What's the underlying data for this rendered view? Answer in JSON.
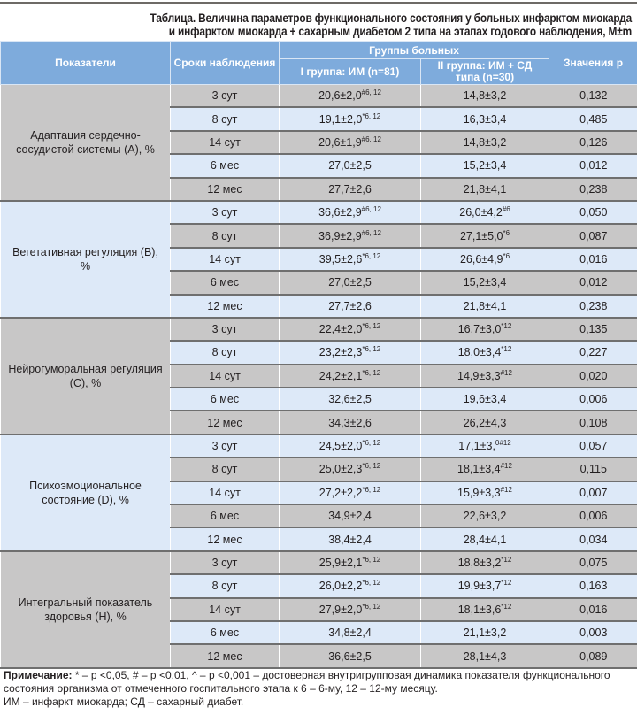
{
  "title": [
    "Таблица. Величина параметров функционального состояния у больных инфарктом миокарда",
    "и инфарктом миокарда + сахарным диабетом 2 типа на этапах годового наблюдения, M±m"
  ],
  "header": {
    "indicator": "Показатели",
    "period": "Сроки наблюдения",
    "groups": "Группы больных",
    "group1": "I группа: ИМ (n=81)",
    "group2": "II группа: ИМ + СД типа (n=30)",
    "p": "Значения р"
  },
  "groups": [
    {
      "label": "Адаптация сердечно-сосудистой системы (А), %",
      "rows": [
        {
          "period": "3 сут",
          "g1": "20,6±2,0",
          "g1s": "#6, 12",
          "g2": "14,8±3,2",
          "g2s": "",
          "p": "0,132"
        },
        {
          "period": "8 сут",
          "g1": "19,1±2,0",
          "g1s": "*6, 12",
          "g2": "16,3±3,4",
          "g2s": "",
          "p": "0,485"
        },
        {
          "period": "14 сут",
          "g1": "20,6±1,9",
          "g1s": "#6, 12",
          "g2": "14,8±3,2",
          "g2s": "",
          "p": "0,126"
        },
        {
          "period": "6 мес",
          "g1": "27,0±2,5",
          "g1s": "",
          "g2": "15,2±3,4",
          "g2s": "",
          "p": "0,012"
        },
        {
          "period": "12 мес",
          "g1": "27,7±2,6",
          "g1s": "",
          "g2": "21,8±4,1",
          "g2s": "",
          "p": "0,238"
        }
      ]
    },
    {
      "label": "Вегетативная регуляция (В), %",
      "rows": [
        {
          "period": "3 сут",
          "g1": "36,6±2,9",
          "g1s": "#6, 12",
          "g2": "26,0±4,2",
          "g2s": "#6",
          "p": "0,050"
        },
        {
          "period": "8 сут",
          "g1": "36,9±2,9",
          "g1s": "#6, 12",
          "g2": "27,1±5,0",
          "g2s": "*6",
          "p": "0,087"
        },
        {
          "period": "14 сут",
          "g1": "39,5±2,6",
          "g1s": "*6, 12",
          "g2": "26,6±4,9",
          "g2s": "*6",
          "p": "0,016"
        },
        {
          "period": "6 мес",
          "g1": "27,0±2,5",
          "g1s": "",
          "g2": "15,2±3,4",
          "g2s": "",
          "p": "0,012"
        },
        {
          "period": "12 мес",
          "g1": "27,7±2,6",
          "g1s": "",
          "g2": "21,8±4,1",
          "g2s": "",
          "p": "0,238"
        }
      ]
    },
    {
      "label": "Нейрогуморальная регуляция (С), %",
      "rows": [
        {
          "period": "3 сут",
          "g1": "22,4±2,0",
          "g1s": "*6, 12",
          "g2": "16,7±3,0",
          "g2s": "*12",
          "p": "0,135"
        },
        {
          "period": "8 сут",
          "g1": "23,2±2,3",
          "g1s": "*6, 12",
          "g2": "18,0±3,4",
          "g2s": "*12",
          "p": "0,227"
        },
        {
          "period": "14 сут",
          "g1": "24,2±2,1",
          "g1s": "*6, 12",
          "g2": "14,9±3,3",
          "g2s": "#12",
          "p": "0,020"
        },
        {
          "period": "6 мес",
          "g1": "32,6±2,5",
          "g1s": "",
          "g2": "19,6±3,4",
          "g2s": "",
          "p": "0,006"
        },
        {
          "period": "12 мес",
          "g1": "34,3±2,6",
          "g1s": "",
          "g2": "26,2±4,3",
          "g2s": "",
          "p": "0,108"
        }
      ]
    },
    {
      "label": "Психоэмоциональное состояние (D), %",
      "rows": [
        {
          "period": "3 сут",
          "g1": "24,5±2,0",
          "g1s": "*6, 12",
          "g2": "17,1±3,",
          "g2s": "0#12",
          "p": "0,057"
        },
        {
          "period": "8 сут",
          "g1": "25,0±2,3",
          "g1s": "*6, 12",
          "g2": "18,1±3,4",
          "g2s": "#12",
          "p": "0,115"
        },
        {
          "period": "14 сут",
          "g1": "27,2±2,2",
          "g1s": "*6, 12",
          "g2": "15,9±3,3",
          "g2s": "#12",
          "p": "0,007"
        },
        {
          "period": "6 мес",
          "g1": "34,9±2,4",
          "g1s": "",
          "g2": "22,6±3,2",
          "g2s": "",
          "p": "0,006"
        },
        {
          "period": "12 мес",
          "g1": "38,4±2,4",
          "g1s": "",
          "g2": "28,4±4,1",
          "g2s": "",
          "p": "0,034"
        }
      ]
    },
    {
      "label": "Интегральный показатель здоровья (Н), %",
      "rows": [
        {
          "period": "3 сут",
          "g1": "25,9±2,1",
          "g1s": "*6, 12",
          "g2": "18,8±3,2",
          "g2s": "*12",
          "p": "0,075"
        },
        {
          "period": "8 сут",
          "g1": "26,0±2,2",
          "g1s": "*6, 12",
          "g2": "19,9±3,7",
          "g2s": "*12",
          "p": "0,163"
        },
        {
          "period": "14 сут",
          "g1": "27,9±2,0",
          "g1s": "*6, 12",
          "g2": "18,1±3,6",
          "g2s": "*12",
          "p": "0,016"
        },
        {
          "period": "6 мес",
          "g1": "34,8±2,4",
          "g1s": "",
          "g2": "21,1±3,2",
          "g2s": "",
          "p": "0,003"
        },
        {
          "period": "12 мес",
          "g1": "36,6±2,5",
          "g1s": "",
          "g2": "28,1±4,3",
          "g2s": "",
          "p": "0,089"
        }
      ]
    }
  ],
  "note": {
    "label": "Примечание:",
    "text": " * – р <0,05, # – р <0,01, ^ – р <0,001 – достоверная внутригрупповая динамика показателя функционального состояния организма от отмеченного госпитального этапа к 6 – 6-му, 12 – 12-му месяцу.",
    "abbr": "ИМ – инфаркт миокарда; СД – сахарный диабет."
  },
  "colors": {
    "header": "#7eabdc",
    "row_grey": "#c8c7c7",
    "row_blue": "#dde9f8"
  }
}
